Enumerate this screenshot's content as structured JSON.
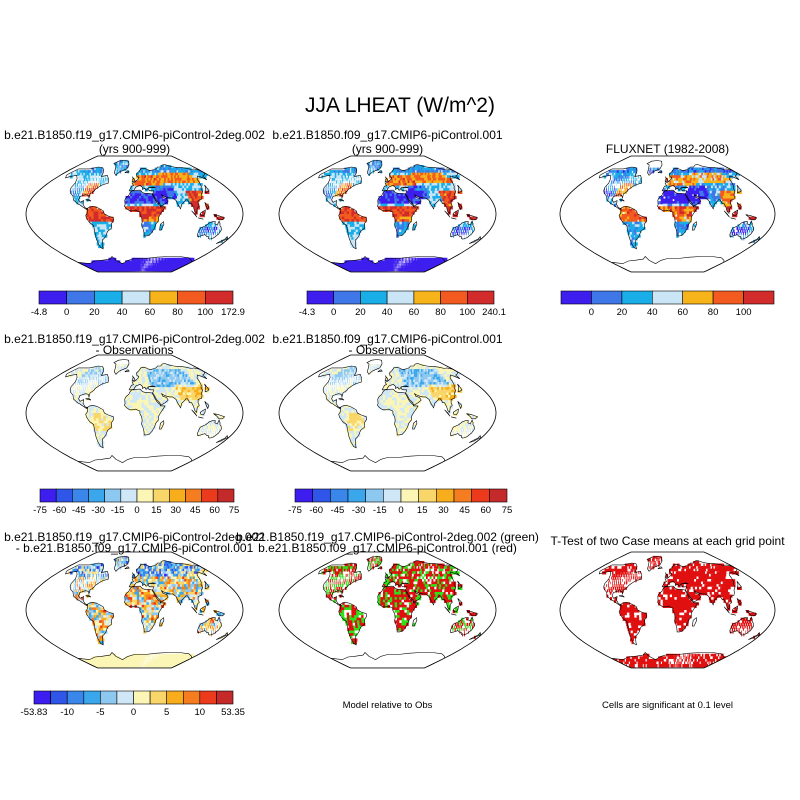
{
  "title": "JJA LHEAT (W/m^2)",
  "panels": [
    {
      "title1": "b.e21.B1850.f19_g17.CMIP6-piControl-2deg.002",
      "title2": "(yrs 900-999)",
      "scheme": "abs"
    },
    {
      "title1": "b.e21.B1850.f09_g17.CMIP6-piControl.001",
      "title2": "(yrs 900-999)",
      "scheme": "abs"
    },
    {
      "title1": "FLUXNET (1982-2008)",
      "title2": "",
      "scheme": "obs"
    },
    {
      "title1": "b.e21.B1850.f19_g17.CMIP6-piControl-2deg.002",
      "title2": "- Observations",
      "scheme": "diff"
    },
    {
      "title1": "b.e21.B1850.f09_g17.CMIP6-piControl.001",
      "title2": "- Observations",
      "scheme": "diff"
    },
    {
      "title1": "b.e21.B1850.f19_g17.CMIP6-piControl-2deg.002",
      "title2": "- b.e21.B1850.f09_g17.CMIP6-piControl.001",
      "scheme": "casediff"
    },
    {
      "title1": "b.e21.B1850.f19_g17.CMIP6-piControl-2deg.002 (green)",
      "title2": "b.e21.B1850.f09_g17.CMIP6-piControl.001 (red)",
      "scheme": "greenred",
      "note": "Model relative to Obs"
    },
    {
      "title1": "T-Test of two Case means at each grid point",
      "title2": "",
      "scheme": "ttest",
      "note": "Cells are significant at 0.1 level"
    }
  ],
  "chart_data": [
    {
      "type": "heatmap",
      "title": "b.e21.B1850.f19_g17.CMIP6-piControl-2deg.002 (yrs 900-999)",
      "colorbar_labels": [
        "-4.8",
        "0",
        "20",
        "40",
        "60",
        "80",
        "100",
        "172.9"
      ],
      "colorbar_colors": [
        "#3d1eef",
        "#3f77e8",
        "#1aaee8",
        "#c9e5f6",
        "#f7b41a",
        "#f25a1f",
        "#d22b2b"
      ]
    },
    {
      "type": "heatmap",
      "title": "b.e21.B1850.f09_g17.CMIP6-piControl.001 (yrs 900-999)",
      "colorbar_labels": [
        "-4.3",
        "0",
        "20",
        "40",
        "60",
        "80",
        "100",
        "240.1"
      ],
      "colorbar_colors": [
        "#3d1eef",
        "#3f77e8",
        "#1aaee8",
        "#c9e5f6",
        "#f7b41a",
        "#f25a1f",
        "#d22b2b"
      ]
    },
    {
      "type": "heatmap",
      "title": "FLUXNET (1982-2008)",
      "colorbar_labels": [
        "",
        "0",
        "20",
        "40",
        "60",
        "80",
        "100",
        ""
      ],
      "colorbar_colors": [
        "#3d1eef",
        "#3f77e8",
        "#1aaee8",
        "#c9e5f6",
        "#f7b41a",
        "#f25a1f",
        "#d22b2b"
      ]
    },
    {
      "type": "heatmap",
      "title": "b.e21.B1850.f19_g17.CMIP6-piControl-2deg.002 - Observations",
      "colorbar_labels": [
        "-75",
        "-60",
        "-45",
        "-30",
        "-15",
        "0",
        "15",
        "30",
        "45",
        "60",
        "75"
      ],
      "colorbar_colors": [
        "#3d1eef",
        "#2f55e9",
        "#3a86eb",
        "#3aa6ec",
        "#8cc8f0",
        "#cfe7f7",
        "#fbf6b6",
        "#f9d66a",
        "#f7ad1c",
        "#f57d1f",
        "#eb3a1c",
        "#c42a2a"
      ]
    },
    {
      "type": "heatmap",
      "title": "b.e21.B1850.f09_g17.CMIP6-piControl.001 - Observations",
      "colorbar_labels": [
        "-75",
        "-60",
        "-45",
        "-30",
        "-15",
        "0",
        "15",
        "30",
        "45",
        "60",
        "75"
      ],
      "colorbar_colors": [
        "#3d1eef",
        "#2f55e9",
        "#3a86eb",
        "#3aa6ec",
        "#8cc8f0",
        "#cfe7f7",
        "#fbf6b6",
        "#f9d66a",
        "#f7ad1c",
        "#f57d1f",
        "#eb3a1c",
        "#c42a2a"
      ]
    },
    {
      "type": "heatmap",
      "title": "b.e21.B1850.f19_g17.CMIP6-piControl-2deg.002 - b.e21.B1850.f09_g17.CMIP6-piControl.001",
      "colorbar_labels": [
        "-53.83",
        "",
        "-10",
        "",
        "-5",
        "",
        "0",
        "",
        "5",
        "",
        "10",
        "",
        "53.35"
      ],
      "colorbar_colors": [
        "#3d1eef",
        "#2f55e9",
        "#3a86eb",
        "#3aa6ec",
        "#8cc8f0",
        "#cfe7f7",
        "#fbf6b6",
        "#f9d66a",
        "#f7ad1c",
        "#f57d1f",
        "#eb3a1c",
        "#c42a2a"
      ]
    },
    {
      "type": "heatmap",
      "title": "b.e21.B1850.f19_g17.CMIP6-piControl-2deg.002 (green) b.e21.B1850.f09_g17.CMIP6-piControl.001 (red)",
      "legend": "Model relative to Obs",
      "colors": {
        "green": "#2ee01a",
        "red": "#e01010"
      }
    },
    {
      "type": "heatmap",
      "title": "T-Test of two Case means at each grid point",
      "legend": "Cells are significant at 0.1 level",
      "colors": {
        "significant": "#e01010"
      }
    }
  ]
}
